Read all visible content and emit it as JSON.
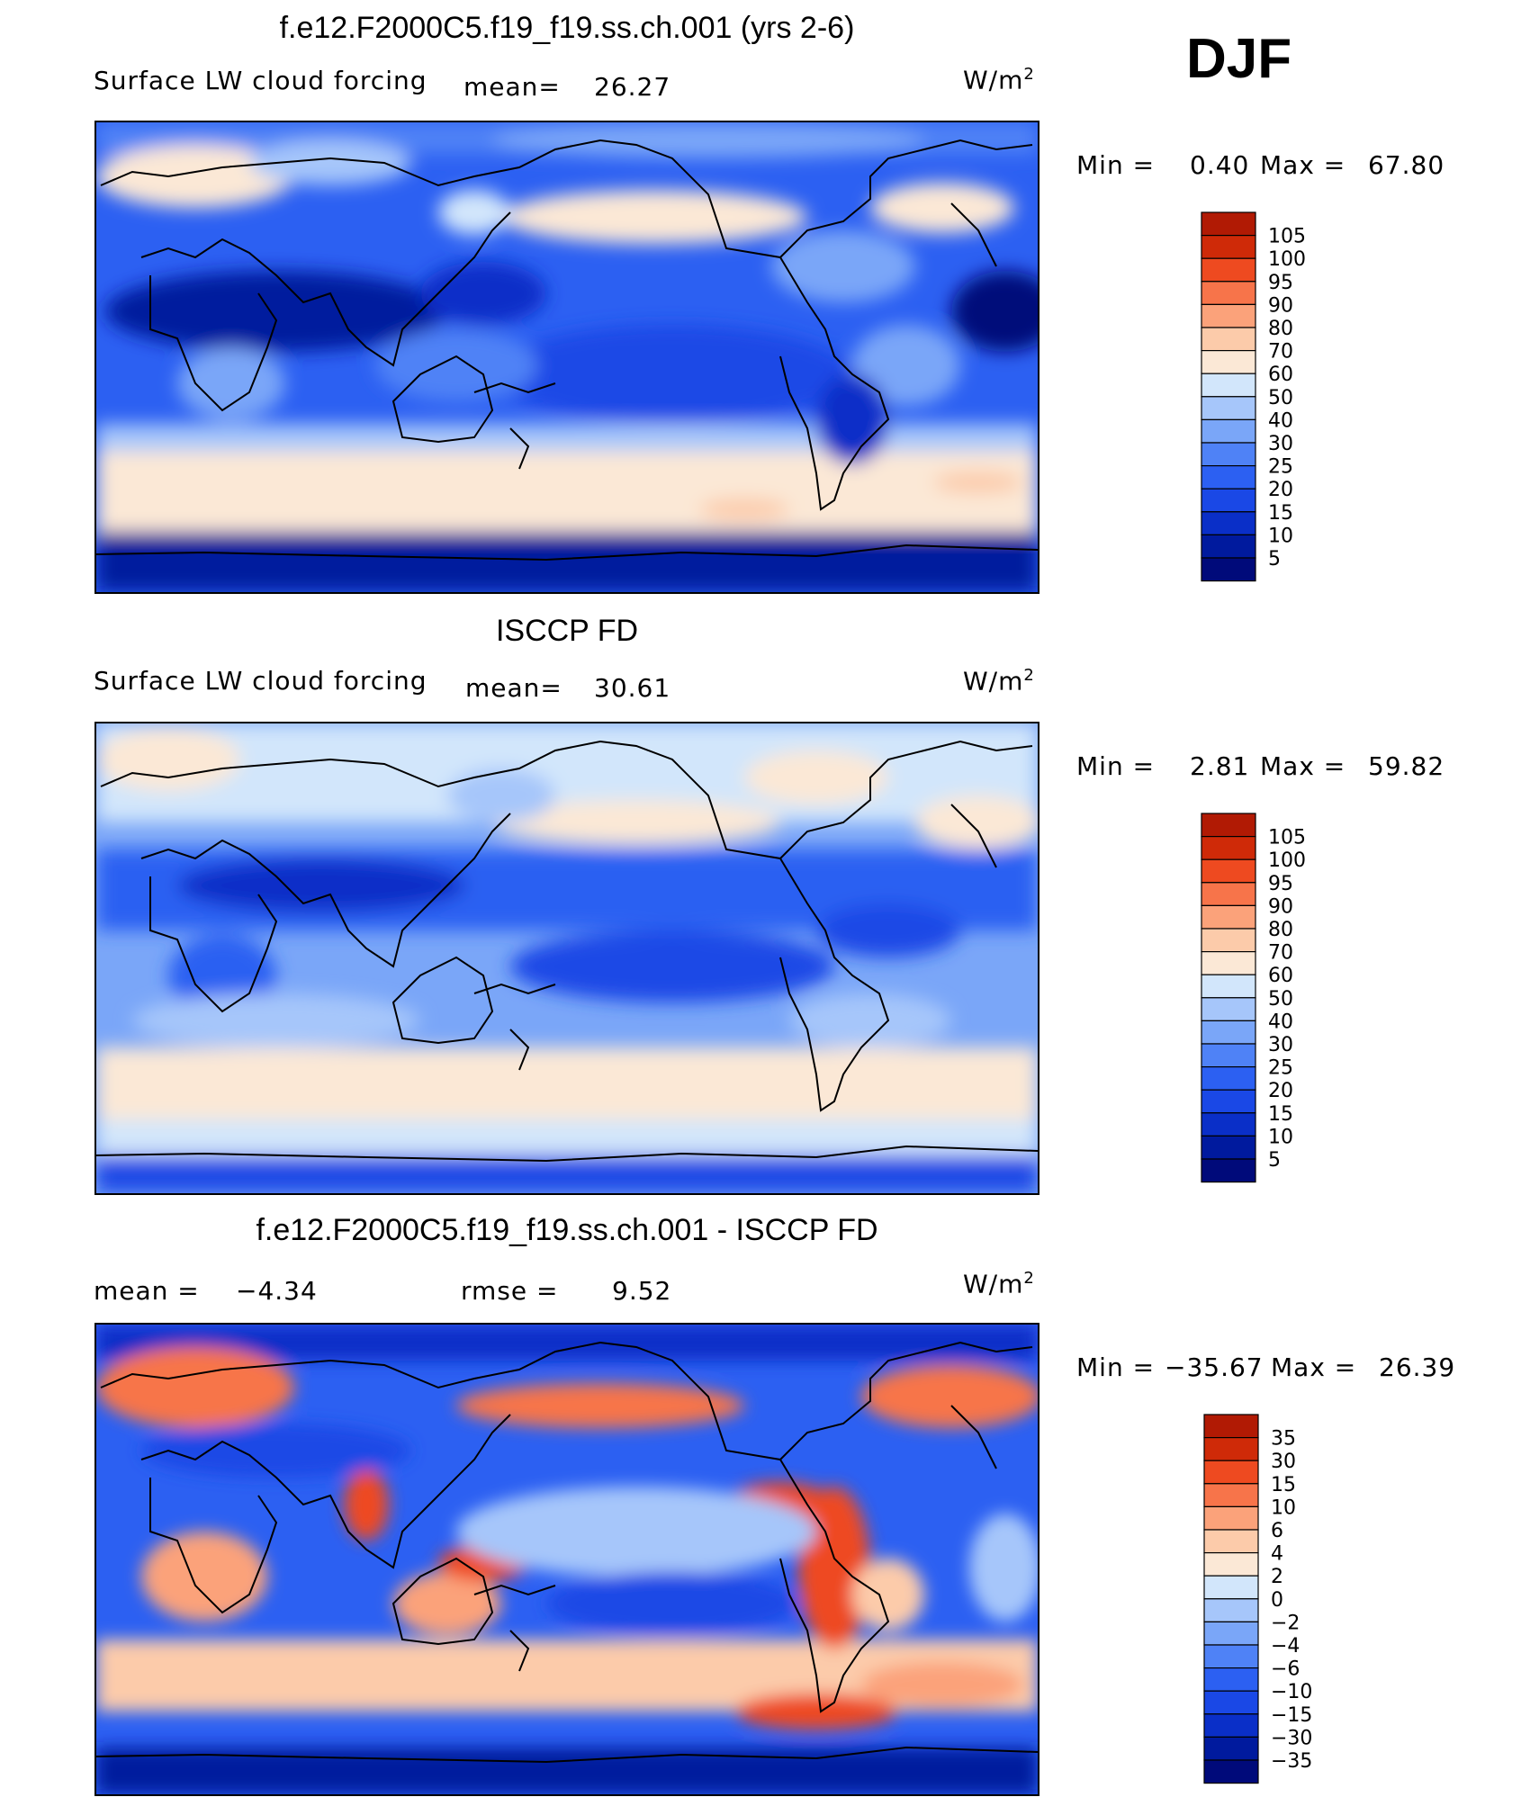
{
  "season": "DJF",
  "palettes": {
    "abs": [
      "#000a7a",
      "#001a9e",
      "#0a2fc8",
      "#1a48e6",
      "#2c60f2",
      "#4f82f6",
      "#7aa6f8",
      "#a6c6fa",
      "#d2e6fb",
      "#fbe8d6",
      "#fccbaa",
      "#fba27a",
      "#f7744a",
      "#ee4a20",
      "#cf2a08",
      "#b11a04",
      "#8a0a00"
    ],
    "diff": [
      "#000a7a",
      "#001a9e",
      "#0a2fc8",
      "#1a48e6",
      "#2c60f2",
      "#4f82f6",
      "#7aa6f8",
      "#a6c6fa",
      "#d2e6fb",
      "#fbe8d6",
      "#fccbaa",
      "#fba27a",
      "#f7744a",
      "#ee4a20",
      "#cf2a08",
      "#b11a04",
      "#8a0a00"
    ]
  },
  "panels": [
    {
      "title": "f.e12.F2000C5.f19_f19.ss.ch.001 (yrs 2-6)",
      "variable": "Surface LW cloud forcing",
      "stat1_label": "mean=",
      "stat1_value": "26.27",
      "units": "W/m",
      "units_sup": "2",
      "minmax_label": "Min =",
      "min": "0.40",
      "max_label": "Max =",
      "max": "67.80",
      "levels": [
        "105",
        "100",
        "95",
        "90",
        "80",
        "70",
        "60",
        "50",
        "40",
        "30",
        "25",
        "20",
        "15",
        "10",
        "5"
      ]
    },
    {
      "title": "ISCCP FD",
      "variable": "Surface LW cloud forcing",
      "stat1_label": "mean=",
      "stat1_value": "30.61",
      "units": "W/m",
      "units_sup": "2",
      "minmax_label": "Min =",
      "min": "2.81",
      "max_label": "Max =",
      "max": "59.82",
      "levels": [
        "105",
        "100",
        "95",
        "90",
        "80",
        "70",
        "60",
        "50",
        "40",
        "30",
        "25",
        "20",
        "15",
        "10",
        "5"
      ]
    },
    {
      "title": "f.e12.F2000C5.f19_f19.ss.ch.001 - ISCCP FD",
      "stat1_label": "mean =",
      "stat1_value": "−4.34",
      "stat2_label": "rmse =",
      "stat2_value": "9.52",
      "units": "W/m",
      "units_sup": "2",
      "minmax_label": "Min =",
      "min": "−35.67",
      "max_label": "Max =",
      "max": "26.39",
      "levels": [
        "35",
        "30",
        "15",
        "10",
        "6",
        "4",
        "2",
        "0",
        "−2",
        "−4",
        "−6",
        "−10",
        "−15",
        "−30",
        "−35"
      ]
    }
  ]
}
